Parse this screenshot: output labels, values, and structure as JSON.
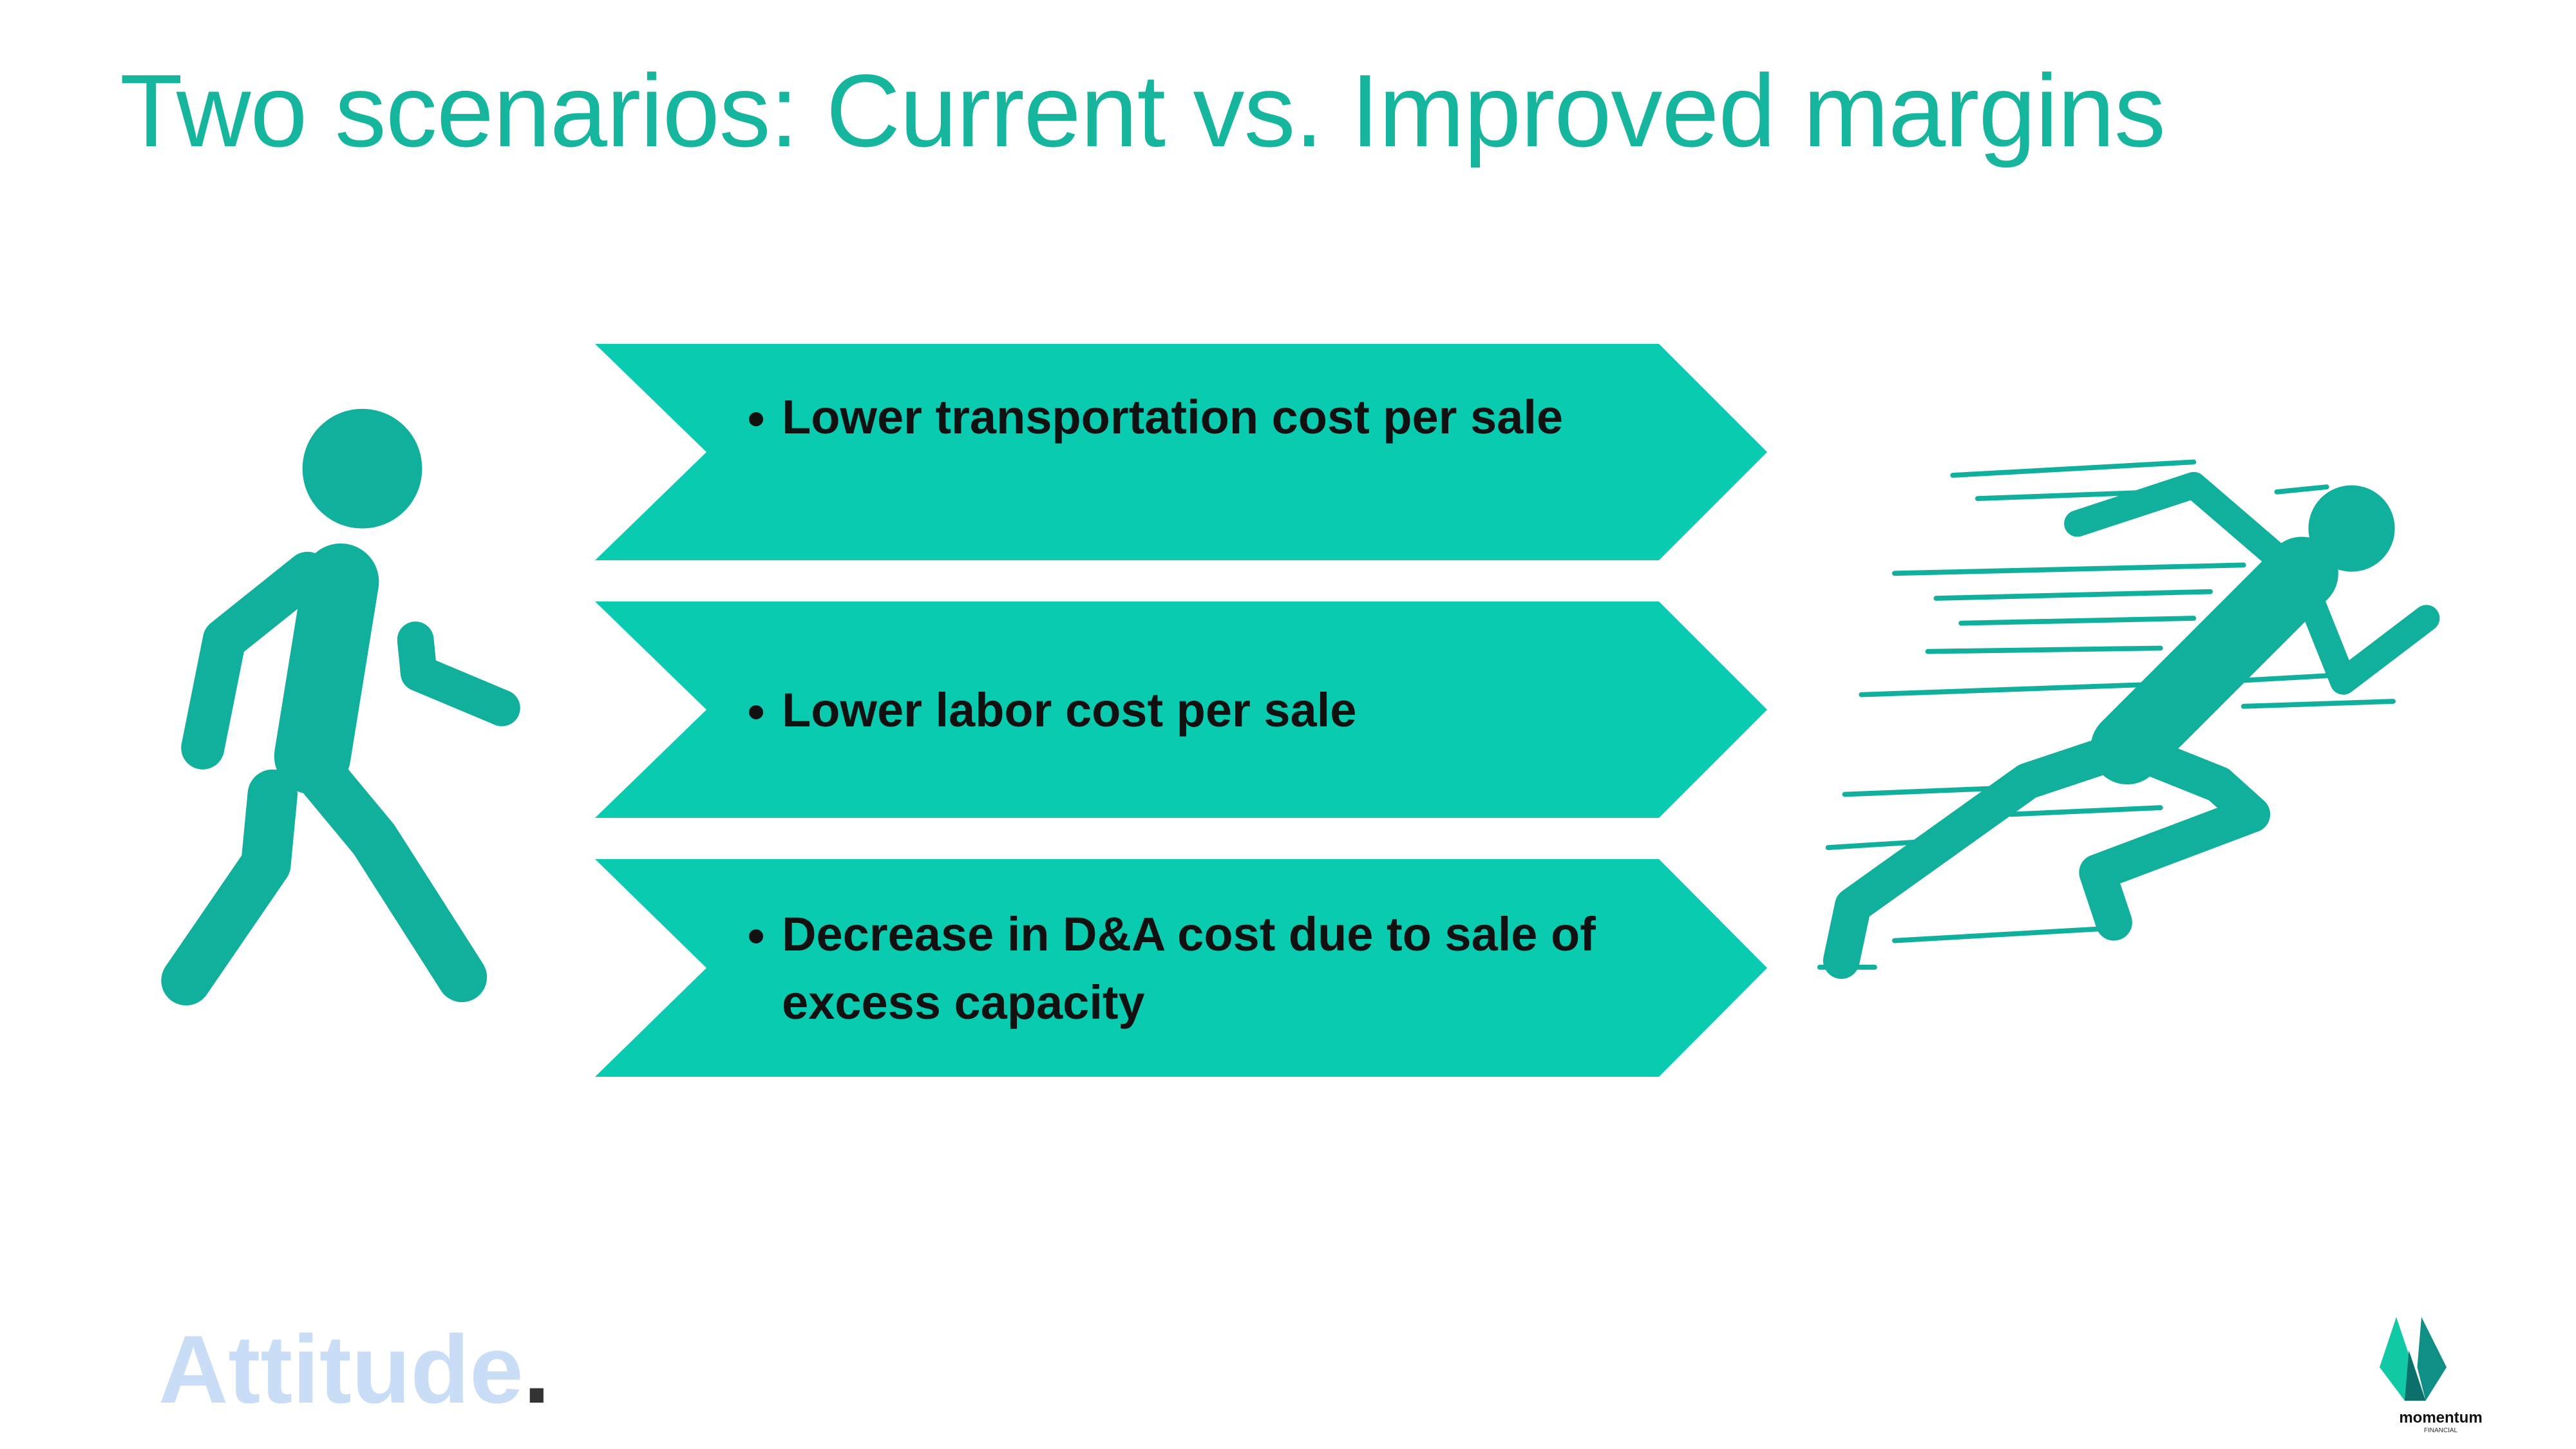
{
  "header": {
    "title": "Two scenarios: Current vs. Improved margins"
  },
  "items": [
    "Lower transportation cost per sale",
    "Lower labor cost per sale",
    "Decrease in D&A cost due to sale of excess capacity"
  ],
  "brand": {
    "text": "Attitude",
    "mark": "."
  },
  "logo": {
    "name": "momentum",
    "sub": "FINANCIAL"
  }
}
